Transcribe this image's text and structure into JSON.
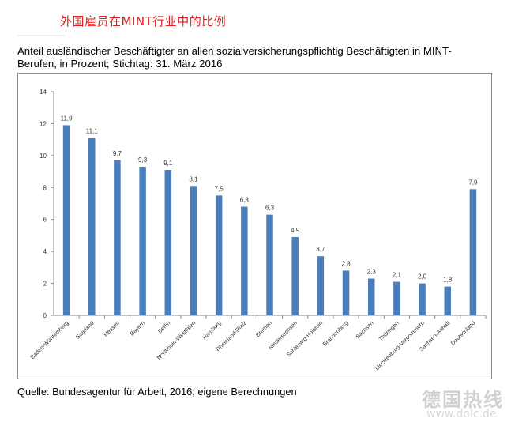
{
  "header": {
    "cn_title": "外国雇员在MINT行业中的比例"
  },
  "subtitle": "Anteil ausländischer Beschäftigter an allen sozialversicherungspflichtig Beschäftigten in MINT-Berufen, in Prozent; Stichtag: 31. März 2016",
  "source": "Quelle: Bundesagentur für Arbeit, 2016; eigene Berechnungen",
  "watermark": {
    "cn": "德国热线",
    "url": "www.dolc.de"
  },
  "colors": {
    "bar": "#4a7ebb",
    "axis": "#8a8a8a",
    "title": "#e02020"
  },
  "chart_data": {
    "type": "bar",
    "categories": [
      "Baden-Württemberg",
      "Saarland",
      "Hessen",
      "Bayern",
      "Berlin",
      "Nordrhein-Westfalen",
      "Hamburg",
      "Rheinland-Pfalz",
      "Bremen",
      "Niedersachsen",
      "Schleswig-Holstein",
      "Brandenburg",
      "Sachsen",
      "Thüringen",
      "Mecklenburg-Vorpommern",
      "Sachsen-Anhalt",
      "Deutschland"
    ],
    "values": [
      11.9,
      11.1,
      9.7,
      9.3,
      9.1,
      8.1,
      7.5,
      6.8,
      6.3,
      4.9,
      3.7,
      2.8,
      2.3,
      2.1,
      2.0,
      1.8,
      7.9
    ],
    "value_labels": [
      "11,9",
      "11,1",
      "9,7",
      "9,3",
      "9,1",
      "8,1",
      "7,5",
      "6,8",
      "6,3",
      "4,9",
      "3,7",
      "2,8",
      "2,3",
      "2,1",
      "2,0",
      "1,8",
      "7,9"
    ],
    "yticks": [
      0,
      2,
      4,
      6,
      8,
      10,
      12,
      14
    ],
    "ylim": [
      0,
      14
    ],
    "grid": false,
    "title": "",
    "xlabel": "",
    "ylabel": ""
  }
}
